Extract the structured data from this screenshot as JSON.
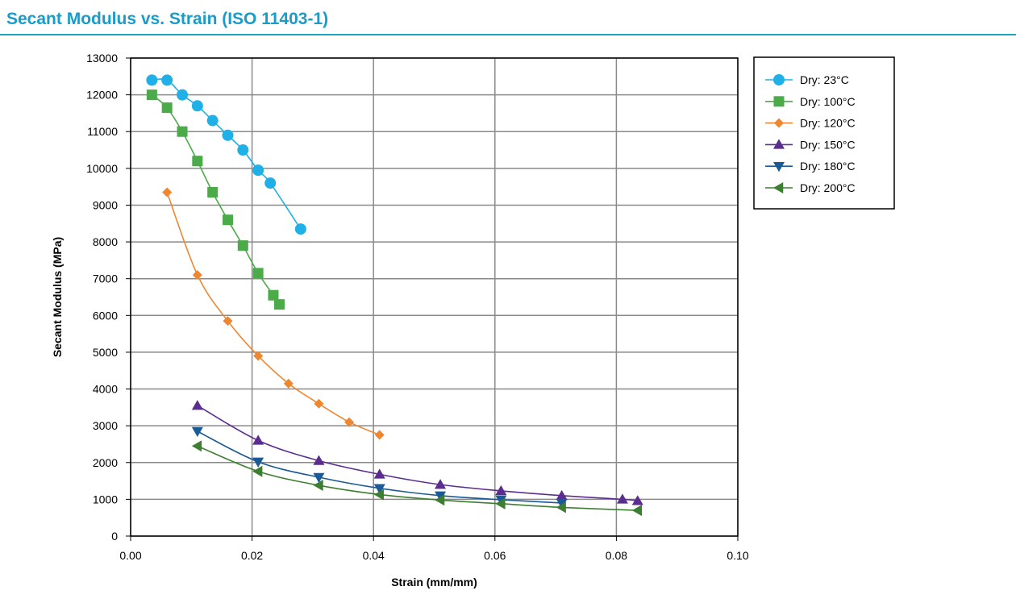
{
  "header": {
    "title": "Secant Modulus vs. Strain (ISO 11403-1)",
    "accent": "#1a9cc9"
  },
  "chart_data": {
    "type": "line",
    "title": "Secant Modulus vs. Strain (ISO 11403-1)",
    "xlabel": "Strain (mm/mm)",
    "ylabel": "Secant Modulus (MPa)",
    "xlim": [
      0,
      0.1
    ],
    "ylim": [
      0,
      13000
    ],
    "xticks": [
      0,
      0.02,
      0.04,
      0.06,
      0.08,
      0.1
    ],
    "xtick_labels": [
      "0.00",
      "0.02",
      "0.04",
      "0.06",
      "0.08",
      "0.10"
    ],
    "yticks": [
      0,
      1000,
      2000,
      3000,
      4000,
      5000,
      6000,
      7000,
      8000,
      9000,
      10000,
      11000,
      12000,
      13000
    ],
    "ytick_labels": [
      "0",
      "1000",
      "2000",
      "3000",
      "4000",
      "5000",
      "6000",
      "7000",
      "8000",
      "9000",
      "10000",
      "11000",
      "12000",
      "13000"
    ],
    "grid": true,
    "legend_position": "right",
    "series": [
      {
        "name": "Dry: 23°C",
        "color": "#1eb0e6",
        "marker": "circle",
        "x": [
          0.0035,
          0.006,
          0.0085,
          0.011,
          0.0135,
          0.016,
          0.0185,
          0.021,
          0.023,
          0.028
        ],
        "y": [
          12400,
          12400,
          12000,
          11700,
          11300,
          10900,
          10500,
          9950,
          9600,
          8350
        ]
      },
      {
        "name": "Dry: 100°C",
        "color": "#4aab48",
        "marker": "square",
        "x": [
          0.0035,
          0.006,
          0.0085,
          0.011,
          0.0135,
          0.016,
          0.0185,
          0.021,
          0.0235,
          0.0245
        ],
        "y": [
          12000,
          11650,
          11000,
          10200,
          9350,
          8600,
          7900,
          7150,
          6550,
          6300
        ]
      },
      {
        "name": "Dry: 120°C",
        "color": "#ee8730",
        "marker": "diamond",
        "x": [
          0.006,
          0.011,
          0.016,
          0.021,
          0.026,
          0.031,
          0.036,
          0.041
        ],
        "y": [
          9350,
          7100,
          5850,
          4900,
          4150,
          3600,
          3100,
          2750
        ]
      },
      {
        "name": "Dry: 150°C",
        "color": "#5b2d8e",
        "marker": "triangle-up",
        "x": [
          0.011,
          0.021,
          0.031,
          0.041,
          0.051,
          0.061,
          0.071,
          0.081,
          0.0835
        ],
        "y": [
          3550,
          2600,
          2050,
          1680,
          1400,
          1230,
          1100,
          1000,
          960
        ]
      },
      {
        "name": "Dry: 180°C",
        "color": "#1a5a96",
        "marker": "triangle-down",
        "x": [
          0.011,
          0.021,
          0.031,
          0.041,
          0.051,
          0.061,
          0.071
        ],
        "y": [
          2850,
          2020,
          1600,
          1300,
          1100,
          990,
          900
        ]
      },
      {
        "name": "Dry: 200°C",
        "color": "#3e7e32",
        "marker": "triangle-left",
        "x": [
          0.011,
          0.021,
          0.031,
          0.041,
          0.051,
          0.061,
          0.071,
          0.0835
        ],
        "y": [
          2450,
          1760,
          1380,
          1130,
          980,
          880,
          780,
          700
        ]
      }
    ]
  }
}
